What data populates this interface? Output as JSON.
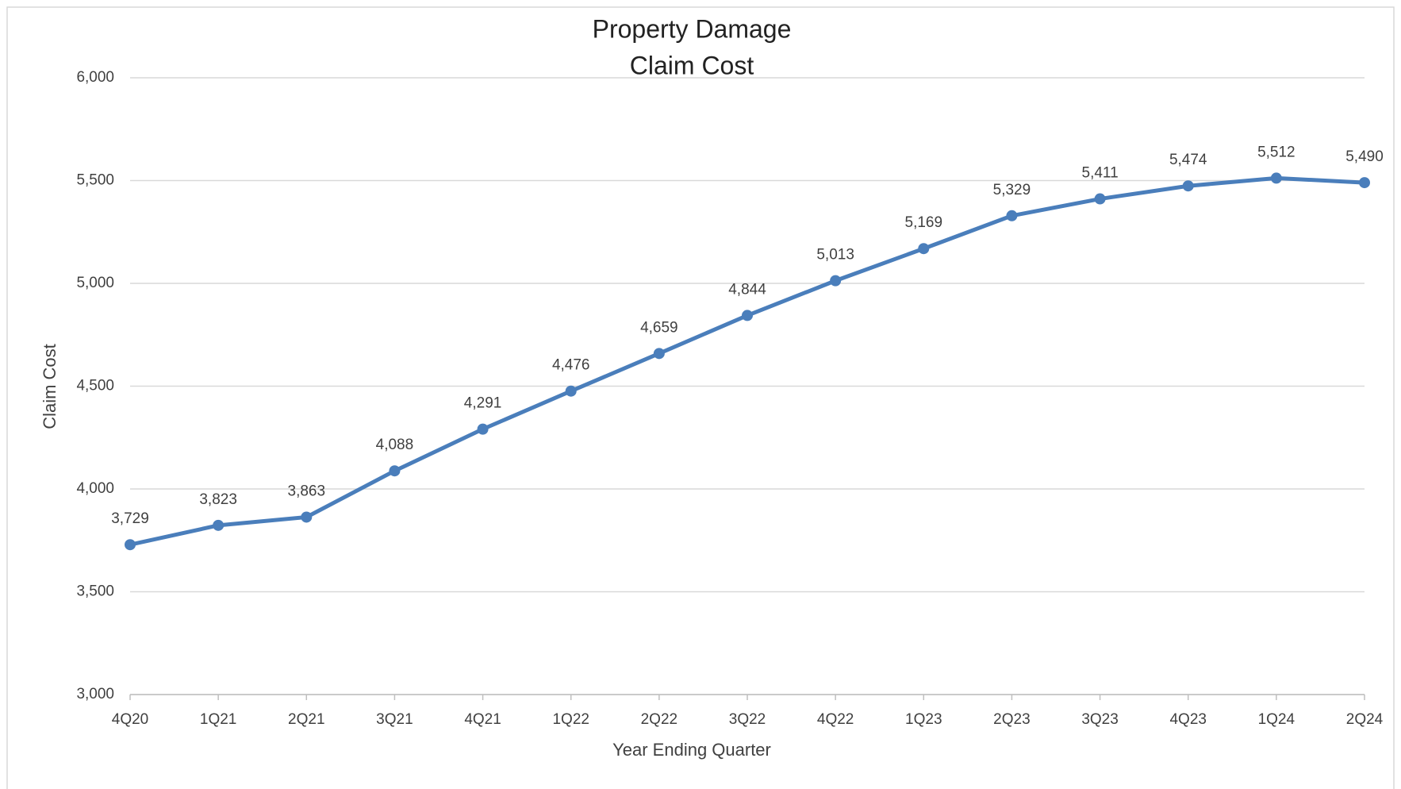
{
  "chart_data": {
    "type": "line",
    "title": [
      "Property Damage",
      "Claim Cost"
    ],
    "x_label": "Year Ending Quarter",
    "y_label": "Claim Cost",
    "categories": [
      "4Q20",
      "1Q21",
      "2Q21",
      "3Q21",
      "4Q21",
      "1Q22",
      "2Q22",
      "3Q22",
      "4Q22",
      "1Q23",
      "2Q23",
      "3Q23",
      "4Q23",
      "1Q24",
      "2Q24"
    ],
    "series": [
      {
        "name": "Claim Cost",
        "color": "#4a7ebb",
        "values": [
          3729,
          3823,
          3863,
          4088,
          4291,
          4476,
          4659,
          4844,
          5013,
          5169,
          5329,
          5411,
          5474,
          5512,
          5490
        ],
        "value_labels": [
          "3,729",
          "3,823",
          "3,863",
          "4,088",
          "4,291",
          "4,476",
          "4,659",
          "4,844",
          "5,013",
          "5,169",
          "5,329",
          "5,411",
          "5,474",
          "5,512",
          "5,490"
        ]
      }
    ],
    "ylim": [
      3000,
      6000
    ],
    "yticks": [
      {
        "value": 3000,
        "label": "3,000"
      },
      {
        "value": 3500,
        "label": "3,500"
      },
      {
        "value": 4000,
        "label": "4,000"
      },
      {
        "value": 4500,
        "label": "4,500"
      },
      {
        "value": 5000,
        "label": "5,000"
      },
      {
        "value": 5500,
        "label": "5,500"
      },
      {
        "value": 6000,
        "label": "6,000"
      }
    ],
    "grid": true
  }
}
